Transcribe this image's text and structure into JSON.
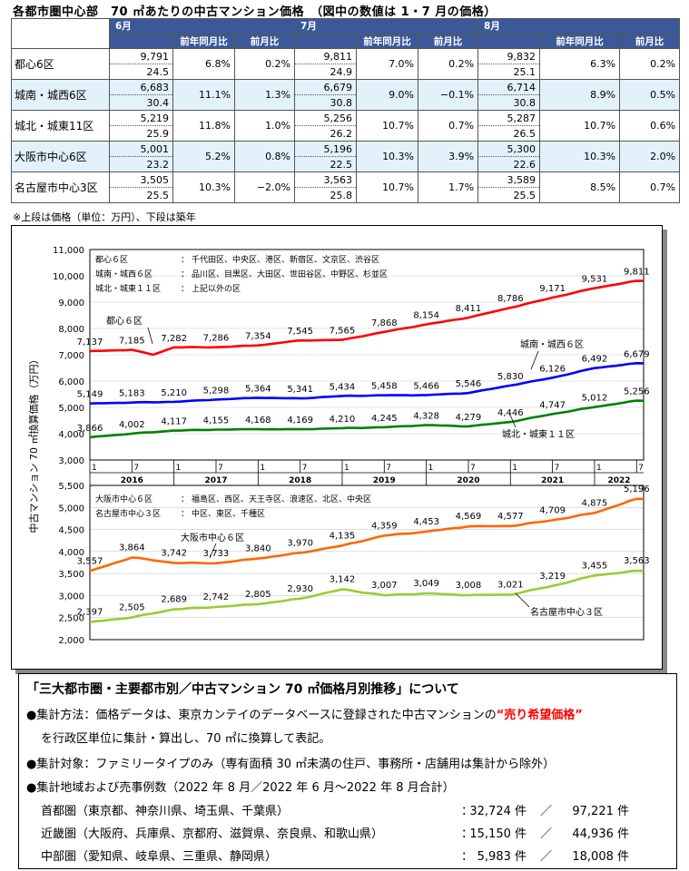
{
  "page_title": "各都市圏中心部　70 ㎡あたりの中古マンション価格　（図中の数値は 1・7 月の価格）",
  "table": {
    "months": [
      "6月",
      "7月",
      "8月"
    ],
    "subheads": [
      "前年同月比",
      "前月比"
    ],
    "rows": [
      {
        "name": "都心6区",
        "cells": [
          [
            "9,791",
            "24.5",
            "6.8%",
            "0.2%"
          ],
          [
            "9,811",
            "24.9",
            "7.0%",
            "0.2%"
          ],
          [
            "9,832",
            "25.1",
            "6.3%",
            "0.2%"
          ]
        ]
      },
      {
        "name": "城南・城西6区",
        "cells": [
          [
            "6,683",
            "30.4",
            "11.1%",
            "1.3%"
          ],
          [
            "6,679",
            "30.8",
            "9.0%",
            "−0.1%"
          ],
          [
            "6,714",
            "30.8",
            "8.9%",
            "0.5%"
          ]
        ]
      },
      {
        "name": "城北・城東11区",
        "cells": [
          [
            "5,219",
            "25.9",
            "11.8%",
            "1.0%"
          ],
          [
            "5,256",
            "26.2",
            "10.7%",
            "0.7%"
          ],
          [
            "5,287",
            "26.5",
            "10.7%",
            "0.6%"
          ]
        ]
      },
      {
        "name": "大阪市中心6区",
        "cells": [
          [
            "5,001",
            "23.2",
            "5.2%",
            "0.8%"
          ],
          [
            "5,196",
            "22.5",
            "10.3%",
            "3.9%"
          ],
          [
            "5,300",
            "22.6",
            "10.3%",
            "2.0%"
          ]
        ]
      },
      {
        "name": "名古屋市中心3区",
        "cells": [
          [
            "3,505",
            "25.5",
            "10.3%",
            "−2.0%"
          ],
          [
            "3,563",
            "25.8",
            "10.7%",
            "1.7%"
          ],
          [
            "3,589",
            "25.5",
            "8.5%",
            "0.7%"
          ]
        ]
      }
    ],
    "note": "※上段は価格（単位：万円）、下段は築年"
  },
  "chart_data": [
    {
      "type": "line",
      "ylabel": "中古マンション 70 ㎡換算価格（万円）",
      "ylim": [
        3000,
        11000
      ],
      "yticks": [
        "3,000",
        "4,000",
        "5,000",
        "6,000",
        "7,000",
        "8,000",
        "9,000",
        "10,000",
        "11,000"
      ],
      "x_month_ticks": [
        "1",
        "7",
        "1",
        "7",
        "1",
        "7",
        "1",
        "7",
        "1",
        "7",
        "1",
        "7",
        "1",
        "7"
      ],
      "years": [
        "2016",
        "2017",
        "2018",
        "2019",
        "2020",
        "2021",
        "2022"
      ],
      "legend": [
        {
          "label": "都心６区",
          "areas": "千代田区、中央区、港区、新宿区、文京区、渋谷区"
        },
        {
          "label": "城南・城西６区",
          "areas": "品川区、目黒区、大田区、世田谷区、中野区、杉並区"
        },
        {
          "label": "城北・城東１１区",
          "areas": "上記以外の区"
        }
      ],
      "series": [
        {
          "name": "都心６区",
          "color": "#ff0000",
          "anchors": [
            [
              1,
              7137
            ],
            [
              7,
              7185
            ],
            [
              10,
              7000
            ],
            [
              13,
              7282
            ],
            [
              19,
              7286
            ],
            [
              25,
              7354
            ],
            [
              31,
              7545
            ],
            [
              37,
              7565
            ],
            [
              43,
              7868
            ],
            [
              49,
              8154
            ],
            [
              55,
              8411
            ],
            [
              61,
              8786
            ],
            [
              67,
              9171
            ],
            [
              73,
              9531
            ],
            [
              79,
              9811
            ]
          ],
          "labels": [
            [
              "7,137",
              1
            ],
            [
              "7,185",
              7
            ],
            [
              "7,282",
              13
            ],
            [
              "7,286",
              19
            ],
            [
              "7,354",
              25
            ],
            [
              "7,545",
              31
            ],
            [
              "7,565",
              37
            ],
            [
              "7,868",
              43
            ],
            [
              "8,154",
              49
            ],
            [
              "8,411",
              55
            ],
            [
              "8,786",
              61
            ],
            [
              "9,171",
              67
            ],
            [
              "9,531",
              73
            ],
            [
              "9,811",
              79
            ]
          ]
        },
        {
          "name": "城南・城西６区",
          "color": "#0000ff",
          "anchors": [
            [
              1,
              5149
            ],
            [
              7,
              5183
            ],
            [
              13,
              5210
            ],
            [
              19,
              5298
            ],
            [
              25,
              5364
            ],
            [
              31,
              5341
            ],
            [
              37,
              5434
            ],
            [
              43,
              5458
            ],
            [
              49,
              5466
            ],
            [
              55,
              5546
            ],
            [
              61,
              5830
            ],
            [
              67,
              6126
            ],
            [
              73,
              6492
            ],
            [
              79,
              6679
            ]
          ],
          "labels": [
            [
              "5,149",
              1
            ],
            [
              "5,183",
              7
            ],
            [
              "5,210",
              13
            ],
            [
              "5,298",
              19
            ],
            [
              "5,364",
              25
            ],
            [
              "5,341",
              31
            ],
            [
              "5,434",
              37
            ],
            [
              "5,458",
              43
            ],
            [
              "5,466",
              49
            ],
            [
              "5,546",
              55
            ],
            [
              "5,830",
              61
            ],
            [
              "6,126",
              67
            ],
            [
              "6,492",
              73
            ],
            [
              "6,679",
              79
            ]
          ]
        },
        {
          "name": "城北・城東１１区",
          "color": "#008000",
          "anchors": [
            [
              1,
              3866
            ],
            [
              7,
              4002
            ],
            [
              13,
              4117
            ],
            [
              19,
              4155
            ],
            [
              25,
              4168
            ],
            [
              31,
              4169
            ],
            [
              37,
              4210
            ],
            [
              43,
              4245
            ],
            [
              49,
              4328
            ],
            [
              55,
              4279
            ],
            [
              61,
              4446
            ],
            [
              67,
              4747
            ],
            [
              73,
              5012
            ],
            [
              79,
              5256
            ]
          ],
          "labels": [
            [
              "3,866",
              1
            ],
            [
              "4,002",
              7
            ],
            [
              "4,117",
              13
            ],
            [
              "4,155",
              19
            ],
            [
              "4,168",
              25
            ],
            [
              "4,169",
              31
            ],
            [
              "4,210",
              37
            ],
            [
              "4,245",
              43
            ],
            [
              "4,328",
              49
            ],
            [
              "4,279",
              55
            ],
            [
              "4,446",
              61
            ],
            [
              "4,747",
              67
            ],
            [
              "5,012",
              73
            ],
            [
              "5,256",
              79
            ]
          ]
        }
      ]
    },
    {
      "type": "line",
      "ylim": [
        2000,
        5500
      ],
      "yticks": [
        "2,000",
        "2,500",
        "3,000",
        "3,500",
        "4,000",
        "4,500",
        "5,000",
        "5,500"
      ],
      "legend": [
        {
          "label": "大阪市中心６区",
          "areas": "福島区、西区、天王寺区、浪速区、北区、中央区"
        },
        {
          "label": "名古屋市中心３区",
          "areas": "中区、東区、千種区"
        }
      ],
      "series": [
        {
          "name": "大阪市中心６区",
          "color": "#ff6600",
          "anchors": [
            [
              1,
              3557
            ],
            [
              7,
              3864
            ],
            [
              13,
              3742
            ],
            [
              19,
              3733
            ],
            [
              25,
              3840
            ],
            [
              31,
              3970
            ],
            [
              37,
              4135
            ],
            [
              43,
              4359
            ],
            [
              49,
              4453
            ],
            [
              55,
              4569
            ],
            [
              61,
              4577
            ],
            [
              67,
              4709
            ],
            [
              73,
              4875
            ],
            [
              79,
              5196
            ]
          ],
          "labels": [
            [
              "3,557",
              1
            ],
            [
              "3,864",
              7
            ],
            [
              "3,742",
              13
            ],
            [
              "3,733",
              19
            ],
            [
              "3,840",
              25
            ],
            [
              "3,970",
              31
            ],
            [
              "4,135",
              37
            ],
            [
              "4,359",
              43
            ],
            [
              "4,453",
              49
            ],
            [
              "4,569",
              55
            ],
            [
              "4,577",
              61
            ],
            [
              "4,709",
              67
            ],
            [
              "4,875",
              73
            ],
            [
              "5,196",
              79
            ]
          ]
        },
        {
          "name": "名古屋市中心３区",
          "color": "#99cc33",
          "anchors": [
            [
              1,
              2397
            ],
            [
              7,
              2505
            ],
            [
              13,
              2689
            ],
            [
              19,
              2742
            ],
            [
              25,
              2805
            ],
            [
              31,
              2930
            ],
            [
              37,
              3142
            ],
            [
              43,
              3007
            ],
            [
              49,
              3049
            ],
            [
              55,
              3008
            ],
            [
              61,
              3021
            ],
            [
              67,
              3219
            ],
            [
              73,
              3455
            ],
            [
              79,
              3563
            ]
          ],
          "labels": [
            [
              "2,397",
              1
            ],
            [
              "2,505",
              7
            ],
            [
              "2,689",
              13
            ],
            [
              "2,742",
              19
            ],
            [
              "2,805",
              25
            ],
            [
              "2,930",
              31
            ],
            [
              "3,142",
              37
            ],
            [
              "3,007",
              43
            ],
            [
              "3,049",
              49
            ],
            [
              "3,008",
              55
            ],
            [
              "3,021",
              61
            ],
            [
              "3,219",
              67
            ],
            [
              "3,455",
              73
            ],
            [
              "3,563",
              79
            ]
          ]
        }
      ]
    }
  ],
  "info": {
    "heading": "「三大都市圏・主要都市別／中古マンション 70 ㎡価格月別推移」について",
    "method_pre": "●集計方法：価格データは、東京カンテイのデータベースに登録された中古マンションの",
    "method_red": "“売り希望価格”",
    "method_post": "を行政区単位に集計・算出し、70 ㎡に換算して表記。",
    "target": "●集計対象：ファミリータイプのみ（専有面積 30 ㎡未満の住戸、事務所・店舗用は集計から除外）",
    "areas_heading": "●集計地域および売事例数（2022 年 8 月／2022 年 6 月～2022 年 8 月合計）",
    "regions": [
      {
        "name": "首都圏（東京都、神奈川県、埼玉県、千葉県）",
        "month": "32,724 件",
        "total": "97,221 件"
      },
      {
        "name": "近畿圏（大阪府、兵庫県、京都府、滋賀県、奈良県、和歌山県）",
        "month": "15,150 件",
        "total": "44,936 件"
      },
      {
        "name": "中部圏（愛知県、岐阜県、三重県、静岡県）",
        "month": "5,983 件",
        "total": "18,008 件"
      }
    ]
  }
}
